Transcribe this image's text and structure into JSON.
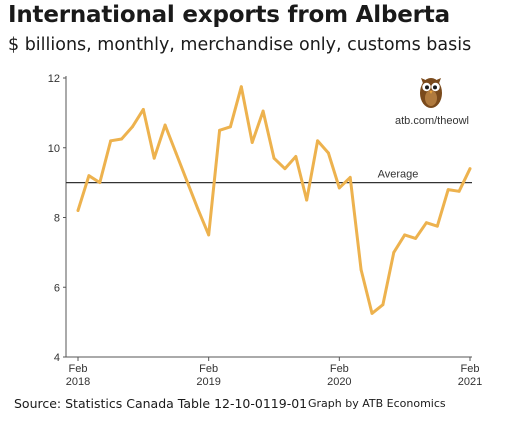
{
  "header": {
    "title": "International exports from Alberta",
    "subtitle": "$ billions, monthly, merchandise only, customs basis"
  },
  "branding": {
    "url": "atb.com/theowl",
    "logo_icon": "owl-icon"
  },
  "footer": {
    "source": "Source: Statistics Canada Table 12-10-0119-01",
    "credit": "Graph by ATB Economics"
  },
  "colors": {
    "line": "#EDB24E",
    "average_line": "#333333",
    "axis": "#555555"
  },
  "chart_data": {
    "type": "line",
    "ylim": [
      4,
      12
    ],
    "y_ticks": [
      "4",
      "6",
      "8",
      "10",
      "12"
    ],
    "x_tick_labels": [
      {
        "month": "Feb",
        "year": "2018",
        "index": 0
      },
      {
        "month": "Feb",
        "year": "2019",
        "index": 12
      },
      {
        "month": "Feb",
        "year": "2020",
        "index": 24
      },
      {
        "month": "Feb",
        "year": "2021",
        "index": 36
      }
    ],
    "x_start": "2018-02",
    "x_end": "2021-02",
    "average": {
      "label": "Average",
      "value": 9.0
    },
    "grid": false,
    "series": [
      {
        "values": [
          8.2,
          9.2,
          9.0,
          10.2,
          10.25,
          10.6,
          11.1,
          9.7,
          10.65,
          9.85,
          9.05,
          8.25,
          7.5,
          10.5,
          10.6,
          11.75,
          10.15,
          11.05,
          9.7,
          9.4,
          9.75,
          8.5,
          10.2,
          9.85,
          8.85,
          9.15,
          6.5,
          5.25,
          5.5,
          7.0,
          7.5,
          7.4,
          7.85,
          7.75,
          8.8,
          8.75,
          9.4
        ]
      }
    ]
  }
}
